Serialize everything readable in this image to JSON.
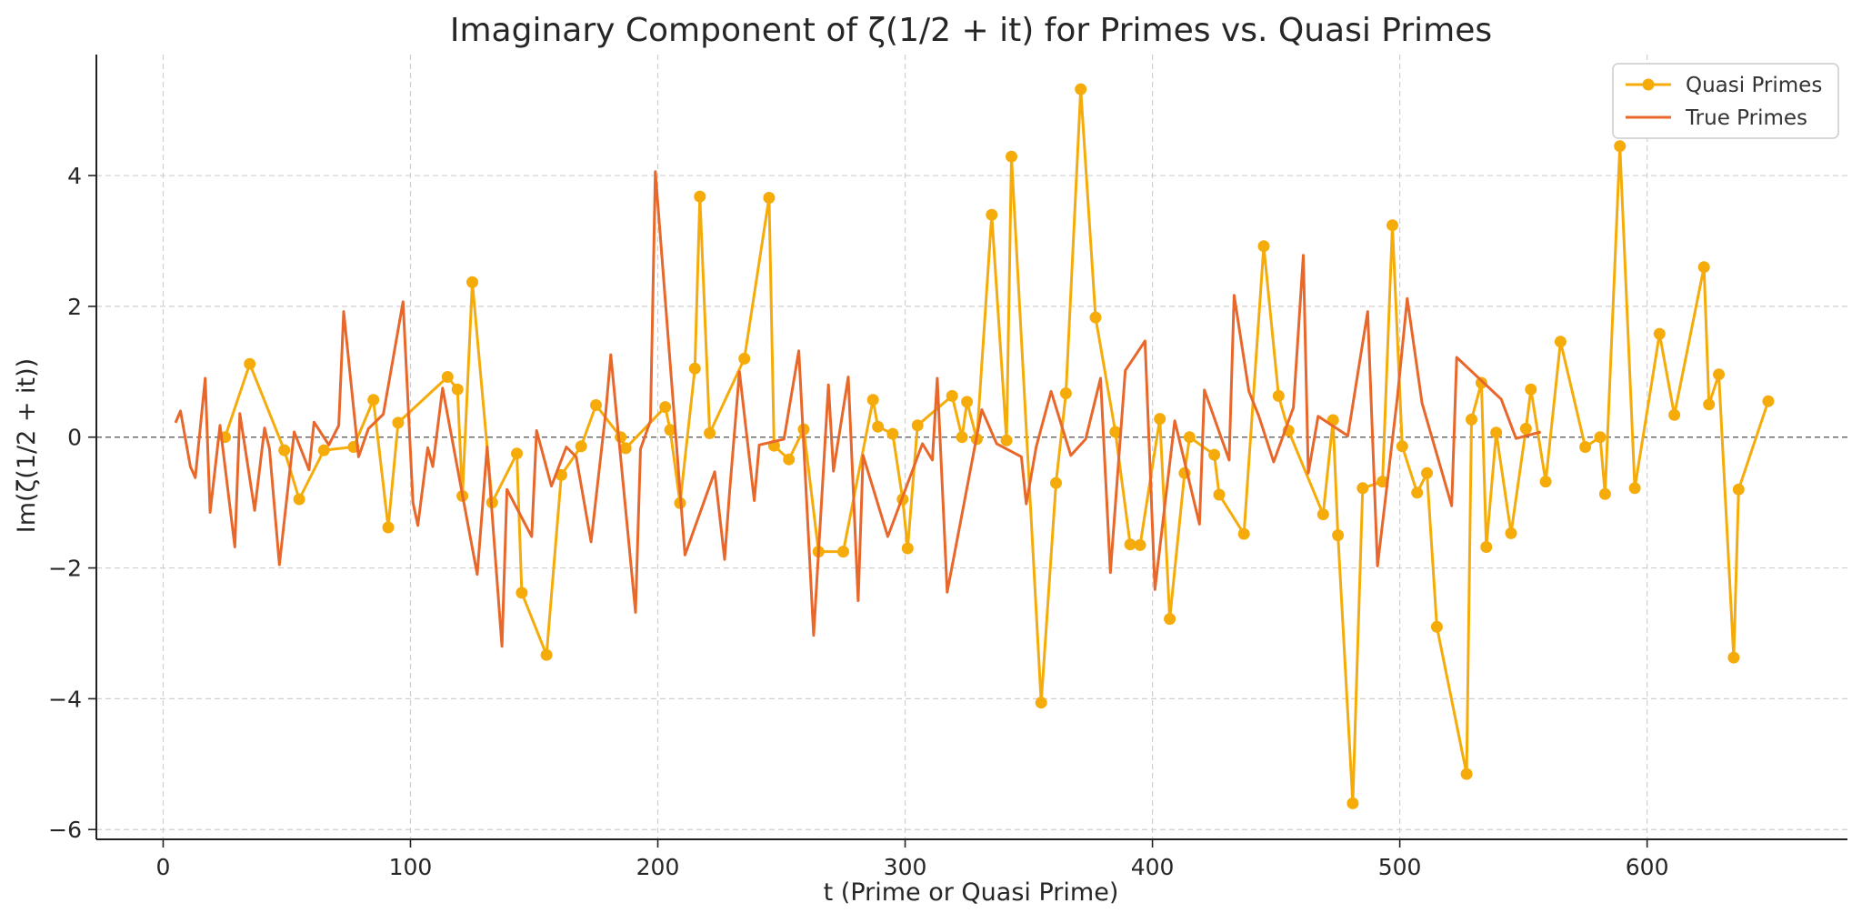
{
  "chart_data": {
    "type": "line",
    "title": "Imaginary Component of ζ(1/2 + it) for Primes vs. Quasi Primes",
    "xlabel": "t (Prime or Quasi Prime)",
    "ylabel": "Im(ζ(1/2 + it))",
    "xlim": [
      -27,
      681
    ],
    "ylim": [
      -6.15,
      5.85
    ],
    "xticks": [
      0,
      100,
      200,
      300,
      400,
      500,
      600
    ],
    "yticks": [
      -6,
      -4,
      -2,
      0,
      2,
      4
    ],
    "xtick_labels": [
      "0",
      "100",
      "200",
      "300",
      "400",
      "500",
      "600"
    ],
    "ytick_labels": [
      "−6",
      "−4",
      "−2",
      "0",
      "2",
      "4"
    ],
    "grid": true,
    "zero_line": true,
    "legend_position": "top-right",
    "series": [
      {
        "name": "Quasi Primes",
        "color": "#f5ac0a",
        "marker": "circle",
        "points": [
          [
            25,
            0.0
          ],
          [
            35,
            1.12
          ],
          [
            49,
            -0.2
          ],
          [
            55,
            -0.95
          ],
          [
            65,
            -0.2
          ],
          [
            77,
            -0.15
          ],
          [
            85,
            0.57
          ],
          [
            91,
            -1.38
          ],
          [
            95,
            0.22
          ],
          [
            115,
            0.92
          ],
          [
            119,
            0.73
          ],
          [
            121,
            -0.9
          ],
          [
            125,
            2.37
          ],
          [
            133,
            -1.0
          ],
          [
            143,
            -0.25
          ],
          [
            145,
            -2.38
          ],
          [
            155,
            -3.33
          ],
          [
            161,
            -0.58
          ],
          [
            169,
            -0.14
          ],
          [
            175,
            0.49
          ],
          [
            185,
            0.0
          ],
          [
            187,
            -0.17
          ],
          [
            203,
            0.46
          ],
          [
            205,
            0.11
          ],
          [
            209,
            -1.01
          ],
          [
            215,
            1.05
          ],
          [
            217,
            3.68
          ],
          [
            221,
            0.06
          ],
          [
            235,
            1.2
          ],
          [
            245,
            3.66
          ],
          [
            247,
            -0.13
          ],
          [
            253,
            -0.34
          ],
          [
            259,
            0.12
          ],
          [
            265,
            -1.75
          ],
          [
            275,
            -1.75
          ],
          [
            287,
            0.57
          ],
          [
            289,
            0.16
          ],
          [
            295,
            0.05
          ],
          [
            299,
            -0.95
          ],
          [
            301,
            -1.7
          ],
          [
            305,
            0.18
          ],
          [
            319,
            0.63
          ],
          [
            323,
            0.0
          ],
          [
            325,
            0.54
          ],
          [
            329,
            -0.03
          ],
          [
            335,
            3.4
          ],
          [
            341,
            -0.05
          ],
          [
            343,
            4.29
          ],
          [
            355,
            -4.06
          ],
          [
            361,
            -0.7
          ],
          [
            365,
            0.67
          ],
          [
            371,
            5.32
          ],
          [
            377,
            1.83
          ],
          [
            385,
            0.08
          ],
          [
            391,
            -1.64
          ],
          [
            395,
            -1.65
          ],
          [
            403,
            0.28
          ],
          [
            407,
            -2.78
          ],
          [
            413,
            -0.55
          ],
          [
            415,
            0.0
          ],
          [
            425,
            -0.27
          ],
          [
            427,
            -0.88
          ],
          [
            437,
            -1.48
          ],
          [
            445,
            2.92
          ],
          [
            451,
            0.63
          ],
          [
            455,
            0.1
          ],
          [
            469,
            -1.18
          ],
          [
            473,
            0.26
          ],
          [
            475,
            -1.5
          ],
          [
            481,
            -5.6
          ],
          [
            485,
            -0.78
          ],
          [
            493,
            -0.68
          ],
          [
            497,
            3.24
          ],
          [
            501,
            -0.14
          ],
          [
            507,
            -0.85
          ],
          [
            511,
            -0.55
          ],
          [
            515,
            -2.9
          ],
          [
            527,
            -5.15
          ],
          [
            529,
            0.27
          ],
          [
            533,
            0.83
          ],
          [
            535,
            -1.68
          ],
          [
            539,
            0.07
          ],
          [
            545,
            -1.47
          ],
          [
            551,
            0.13
          ],
          [
            553,
            0.73
          ],
          [
            559,
            -0.68
          ],
          [
            565,
            1.46
          ],
          [
            575,
            -0.15
          ],
          [
            581,
            0.0
          ],
          [
            583,
            -0.87
          ],
          [
            589,
            4.45
          ],
          [
            595,
            -0.78
          ],
          [
            605,
            1.58
          ],
          [
            611,
            0.34
          ],
          [
            623,
            2.6
          ],
          [
            625,
            0.5
          ],
          [
            629,
            0.96
          ],
          [
            635,
            -3.37
          ],
          [
            637,
            -0.8
          ],
          [
            649,
            0.55
          ]
        ]
      },
      {
        "name": "True Primes",
        "color": "#e8672a",
        "marker": "none",
        "points": [
          [
            5,
            0.22
          ],
          [
            7,
            0.4
          ],
          [
            11,
            -0.45
          ],
          [
            13,
            -0.62
          ],
          [
            17,
            0.9
          ],
          [
            19,
            -1.15
          ],
          [
            23,
            0.18
          ],
          [
            29,
            -1.68
          ],
          [
            31,
            0.36
          ],
          [
            37,
            -1.12
          ],
          [
            41,
            0.14
          ],
          [
            43,
            -0.18
          ],
          [
            47,
            -1.95
          ],
          [
            53,
            0.08
          ],
          [
            59,
            -0.5
          ],
          [
            61,
            0.23
          ],
          [
            67,
            -0.12
          ],
          [
            71,
            0.18
          ],
          [
            73,
            1.92
          ],
          [
            79,
            -0.3
          ],
          [
            83,
            0.13
          ],
          [
            89,
            0.35
          ],
          [
            97,
            2.07
          ],
          [
            101,
            -1.0
          ],
          [
            103,
            -1.35
          ],
          [
            107,
            -0.16
          ],
          [
            109,
            -0.45
          ],
          [
            113,
            0.75
          ],
          [
            127,
            -2.1
          ],
          [
            131,
            -0.15
          ],
          [
            137,
            -3.2
          ],
          [
            139,
            -0.8
          ],
          [
            149,
            -1.52
          ],
          [
            151,
            0.1
          ],
          [
            157,
            -0.75
          ],
          [
            163,
            -0.15
          ],
          [
            167,
            -0.3
          ],
          [
            173,
            -1.6
          ],
          [
            179,
            0.4
          ],
          [
            181,
            1.26
          ],
          [
            191,
            -2.68
          ],
          [
            193,
            -0.18
          ],
          [
            197,
            0.25
          ],
          [
            199,
            4.06
          ],
          [
            211,
            -1.8
          ],
          [
            223,
            -0.53
          ],
          [
            227,
            -1.87
          ],
          [
            229,
            -0.85
          ],
          [
            233,
            1.0
          ],
          [
            239,
            -0.97
          ],
          [
            241,
            -0.12
          ],
          [
            251,
            -0.03
          ],
          [
            257,
            1.32
          ],
          [
            263,
            -3.03
          ],
          [
            269,
            0.8
          ],
          [
            271,
            -0.52
          ],
          [
            277,
            0.92
          ],
          [
            281,
            -2.5
          ],
          [
            283,
            -0.28
          ],
          [
            293,
            -1.52
          ],
          [
            307,
            -0.1
          ],
          [
            311,
            -0.35
          ],
          [
            313,
            0.9
          ],
          [
            317,
            -2.37
          ],
          [
            331,
            0.42
          ],
          [
            337,
            -0.1
          ],
          [
            347,
            -0.3
          ],
          [
            349,
            -1.02
          ],
          [
            353,
            -0.15
          ],
          [
            359,
            0.7
          ],
          [
            367,
            -0.28
          ],
          [
            373,
            -0.03
          ],
          [
            379,
            0.9
          ],
          [
            383,
            -2.07
          ],
          [
            389,
            1.02
          ],
          [
            397,
            1.47
          ],
          [
            401,
            -2.33
          ],
          [
            409,
            0.25
          ],
          [
            419,
            -1.33
          ],
          [
            421,
            0.72
          ],
          [
            431,
            -0.35
          ],
          [
            433,
            2.17
          ],
          [
            439,
            0.7
          ],
          [
            443,
            0.32
          ],
          [
            449,
            -0.38
          ],
          [
            457,
            0.45
          ],
          [
            461,
            2.78
          ],
          [
            463,
            -0.55
          ],
          [
            467,
            0.32
          ],
          [
            479,
            0.02
          ],
          [
            487,
            1.92
          ],
          [
            491,
            -1.97
          ],
          [
            499,
            0.6
          ],
          [
            503,
            2.12
          ],
          [
            509,
            0.52
          ],
          [
            521,
            -1.05
          ],
          [
            523,
            1.22
          ],
          [
            541,
            0.58
          ],
          [
            547,
            -0.02
          ],
          [
            557,
            0.08
          ]
        ]
      }
    ]
  },
  "legend": {
    "items": [
      {
        "label": "Quasi Primes",
        "color": "#f5ac0a"
      },
      {
        "label": "True Primes",
        "color": "#e8672a"
      }
    ]
  }
}
